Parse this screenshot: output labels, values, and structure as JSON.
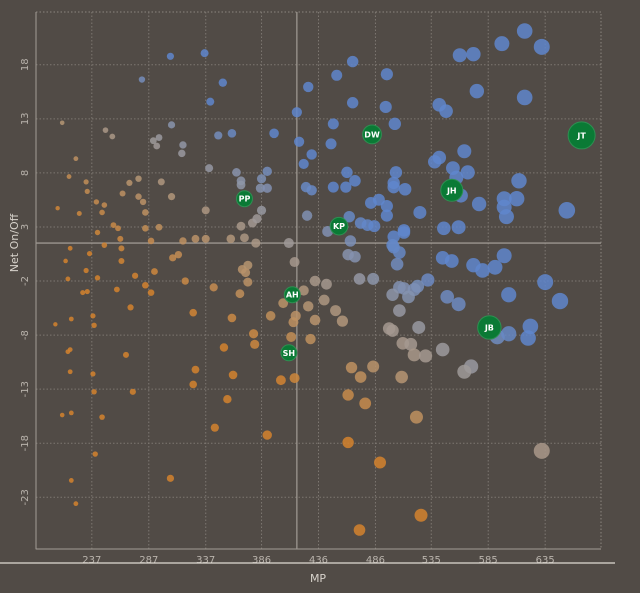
{
  "chart_data": {
    "type": "scatter",
    "title": "",
    "xlabel": "MP",
    "ylabel": "Net On/Off",
    "xlim": [
      188,
      684
    ],
    "ylim": [
      -27.9,
      23.0
    ],
    "x_ticks": [
      "237",
      "287",
      "337",
      "386",
      "436",
      "486",
      "535",
      "585",
      "635"
    ],
    "y_ticks": [
      "18",
      "13",
      "8",
      "3",
      "-2",
      "-8",
      "-13",
      "-18",
      "-23"
    ],
    "grid": true,
    "reference_lines": {
      "x": 417,
      "y": 1.1
    },
    "colors": {
      "background": "#514b46",
      "low": "#d4832e",
      "mid": "#9c9a9e",
      "high": "#5f86cc",
      "highlight": "#0a7a35"
    },
    "highlighted": [
      {
        "label": "JT",
        "mp": 667,
        "net": 11.3
      },
      {
        "label": "DW",
        "mp": 483,
        "net": 11.4
      },
      {
        "label": "JH",
        "mp": 553,
        "net": 6.1
      },
      {
        "label": "PP",
        "mp": 371,
        "net": 5.3
      },
      {
        "label": "KP",
        "mp": 454,
        "net": 2.7
      },
      {
        "label": "AH",
        "mp": 413,
        "net": -3.8
      },
      {
        "label": "JB",
        "mp": 586,
        "net": -6.9
      },
      {
        "label": "SH",
        "mp": 410,
        "net": -9.3
      }
    ],
    "points": [
      [
        306,
        18.8
      ],
      [
        336,
        19.1
      ],
      [
        281,
        16.6
      ],
      [
        352,
        16.3
      ],
      [
        341,
        14.5
      ],
      [
        417,
        13.5
      ],
      [
        211,
        12.5
      ],
      [
        249,
        11.8
      ],
      [
        255,
        11.2
      ],
      [
        307,
        12.3
      ],
      [
        291,
        10.8
      ],
      [
        296,
        11.1
      ],
      [
        294,
        10.3
      ],
      [
        317,
        10.4
      ],
      [
        316,
        9.6
      ],
      [
        348,
        11.3
      ],
      [
        360,
        11.5
      ],
      [
        397,
        11.5
      ],
      [
        419,
        10.7
      ],
      [
        223,
        9.1
      ],
      [
        340,
        8.2
      ],
      [
        364,
        7.8
      ],
      [
        391,
        7.9
      ],
      [
        386,
        7.2
      ],
      [
        368,
        7.0
      ],
      [
        368,
        6.6
      ],
      [
        385,
        6.3
      ],
      [
        391,
        6.3
      ],
      [
        217,
        7.4
      ],
      [
        232,
        6.9
      ],
      [
        233,
        6.0
      ],
      [
        270,
        6.8
      ],
      [
        278,
        7.2
      ],
      [
        298,
        6.9
      ],
      [
        264,
        5.8
      ],
      [
        278,
        5.5
      ],
      [
        282,
        5.0
      ],
      [
        307,
        5.5
      ],
      [
        241,
        5.0
      ],
      [
        248,
        4.7
      ],
      [
        207,
        4.4
      ],
      [
        226,
        3.9
      ],
      [
        246,
        4.0
      ],
      [
        284,
        4.0
      ],
      [
        337,
        4.2
      ],
      [
        386,
        4.2
      ],
      [
        256,
        2.8
      ],
      [
        260,
        2.5
      ],
      [
        284,
        2.5
      ],
      [
        296,
        2.6
      ],
      [
        368,
        2.7
      ],
      [
        378,
        3.0
      ],
      [
        382,
        3.4
      ],
      [
        242,
        2.1
      ],
      [
        262,
        1.5
      ],
      [
        289,
        1.3
      ],
      [
        317,
        1.3
      ],
      [
        328,
        1.5
      ],
      [
        337,
        1.5
      ],
      [
        359,
        1.5
      ],
      [
        371,
        1.6
      ],
      [
        381,
        1.1
      ],
      [
        410,
        1.1
      ],
      [
        248,
        0.9
      ],
      [
        218,
        0.6
      ],
      [
        263,
        0.6
      ],
      [
        617,
        21.2
      ],
      [
        597,
        20.0
      ],
      [
        632,
        19.7
      ],
      [
        560,
        18.9
      ],
      [
        572,
        19.0
      ],
      [
        466,
        18.3
      ],
      [
        452,
        17.0
      ],
      [
        496,
        17.1
      ],
      [
        427,
        15.9
      ],
      [
        575,
        15.5
      ],
      [
        617,
        14.9
      ],
      [
        466,
        14.4
      ],
      [
        495,
        14.0
      ],
      [
        542,
        14.2
      ],
      [
        548,
        13.6
      ],
      [
        449,
        12.4
      ],
      [
        503,
        12.4
      ],
      [
        447,
        10.5
      ],
      [
        430,
        9.5
      ],
      [
        423,
        8.6
      ],
      [
        564,
        9.8
      ],
      [
        538,
        8.8
      ],
      [
        542,
        9.2
      ],
      [
        554,
        8.2
      ],
      [
        567,
        7.8
      ],
      [
        461,
        7.8
      ],
      [
        504,
        7.8
      ],
      [
        468,
        7.0
      ],
      [
        502,
        6.8
      ],
      [
        502,
        6.4
      ],
      [
        512,
        6.2
      ],
      [
        449,
        6.4
      ],
      [
        460,
        6.4
      ],
      [
        425,
        6.4
      ],
      [
        430,
        6.1
      ],
      [
        557,
        7.3
      ],
      [
        561,
        5.6
      ],
      [
        612,
        7.0
      ],
      [
        610,
        5.3
      ],
      [
        599,
        5.3
      ],
      [
        599,
        4.5
      ],
      [
        601,
        3.6
      ],
      [
        577,
        4.8
      ],
      [
        654,
        4.2
      ],
      [
        482,
        4.9
      ],
      [
        489,
        5.2
      ],
      [
        496,
        4.6
      ],
      [
        496,
        3.7
      ],
      [
        525,
        4.0
      ],
      [
        426,
        3.7
      ],
      [
        463,
        3.6
      ],
      [
        473,
        3.0
      ],
      [
        479,
        2.8
      ],
      [
        485,
        2.7
      ],
      [
        444,
        2.2
      ],
      [
        464,
        1.3
      ],
      [
        511,
        2.3
      ],
      [
        511,
        2.1
      ],
      [
        502,
        1.7
      ],
      [
        546,
        2.5
      ],
      [
        559,
        2.6
      ],
      [
        501,
        0.9
      ],
      [
        235,
        0.1
      ],
      [
        214,
        -0.6
      ],
      [
        263,
        -0.6
      ],
      [
        232,
        -1.5
      ],
      [
        216,
        -2.3
      ],
      [
        242,
        -2.2
      ],
      [
        275,
        -2.0
      ],
      [
        292,
        -1.6
      ],
      [
        308,
        -0.3
      ],
      [
        313,
        0.0
      ],
      [
        319,
        -2.5
      ],
      [
        284,
        -2.9
      ],
      [
        259,
        -3.3
      ],
      [
        229,
        -3.6
      ],
      [
        233,
        -3.5
      ],
      [
        289,
        -3.6
      ],
      [
        344,
        -3.1
      ],
      [
        369,
        -1.4
      ],
      [
        374,
        -1.0
      ],
      [
        372,
        -1.7
      ],
      [
        374,
        -2.6
      ],
      [
        367,
        -3.7
      ],
      [
        271,
        -5.0
      ],
      [
        326,
        -5.5
      ],
      [
        360,
        -6.0
      ],
      [
        394,
        -5.8
      ],
      [
        405,
        -4.6
      ],
      [
        238,
        -5.8
      ],
      [
        219,
        -6.1
      ],
      [
        205,
        -6.6
      ],
      [
        239,
        -6.7
      ],
      [
        416,
        -5.8
      ],
      [
        414,
        -6.4
      ],
      [
        379,
        -7.5
      ],
      [
        380,
        -8.5
      ],
      [
        353,
        -8.8
      ],
      [
        412,
        -7.8
      ],
      [
        218,
        -9.0
      ],
      [
        216,
        -9.2
      ],
      [
        267,
        -9.5
      ],
      [
        328,
        -10.9
      ],
      [
        361,
        -11.4
      ],
      [
        403,
        -11.9
      ],
      [
        415,
        -11.7
      ],
      [
        218,
        -11.1
      ],
      [
        238,
        -11.3
      ],
      [
        326,
        -12.3
      ],
      [
        239,
        -13.0
      ],
      [
        273,
        -13.0
      ],
      [
        356,
        -13.7
      ],
      [
        462,
        0.0
      ],
      [
        468,
        -0.2
      ],
      [
        505,
        -0.9
      ],
      [
        507,
        0.2
      ],
      [
        502,
        0.7
      ],
      [
        415,
        -0.7
      ],
      [
        545,
        -0.3
      ],
      [
        553,
        -0.6
      ],
      [
        572,
        -1.0
      ],
      [
        580,
        -1.5
      ],
      [
        591,
        -1.2
      ],
      [
        599,
        -0.1
      ],
      [
        635,
        -2.6
      ],
      [
        648,
        -4.4
      ],
      [
        603,
        -3.8
      ],
      [
        549,
        -4.0
      ],
      [
        559,
        -4.7
      ],
      [
        472,
        -2.3
      ],
      [
        484,
        -2.3
      ],
      [
        532,
        -2.4
      ],
      [
        523,
        -3.0
      ],
      [
        520,
        -3.3
      ],
      [
        507,
        -3.1
      ],
      [
        511,
        -3.2
      ],
      [
        501,
        -3.8
      ],
      [
        515,
        -4.0
      ],
      [
        507,
        -5.3
      ],
      [
        524,
        -6.9
      ],
      [
        498,
        -7.0
      ],
      [
        501,
        -7.2
      ],
      [
        510,
        -8.4
      ],
      [
        517,
        -8.5
      ],
      [
        520,
        -9.5
      ],
      [
        530,
        -9.6
      ],
      [
        545,
        -9.0
      ],
      [
        593,
        -7.8
      ],
      [
        603,
        -7.5
      ],
      [
        622,
        -6.8
      ],
      [
        620,
        -7.9
      ],
      [
        570,
        -10.6
      ],
      [
        564,
        -11.1
      ],
      [
        433,
        -2.5
      ],
      [
        443,
        -2.8
      ],
      [
        423,
        -3.4
      ],
      [
        441,
        -4.3
      ],
      [
        427,
        -4.9
      ],
      [
        451,
        -5.3
      ],
      [
        457,
        -6.3
      ],
      [
        433,
        -6.2
      ],
      [
        429,
        -8.0
      ],
      [
        465,
        -10.7
      ],
      [
        473,
        -11.6
      ],
      [
        484,
        -10.6
      ],
      [
        509,
        -11.6
      ],
      [
        462,
        -13.3
      ],
      [
        477,
        -14.1
      ],
      [
        522,
        -15.4
      ],
      [
        345,
        -16.4
      ],
      [
        391,
        -17.1
      ],
      [
        462,
        -17.8
      ],
      [
        632,
        -18.6
      ],
      [
        240,
        -18.9
      ],
      [
        490,
        -19.7
      ],
      [
        306,
        -21.2
      ],
      [
        219,
        -21.4
      ],
      [
        223,
        -23.6
      ],
      [
        211,
        -15.2
      ],
      [
        219,
        -15.0
      ],
      [
        246,
        -15.4
      ],
      [
        526,
        -24.7
      ],
      [
        472,
        -26.1
      ]
    ]
  }
}
